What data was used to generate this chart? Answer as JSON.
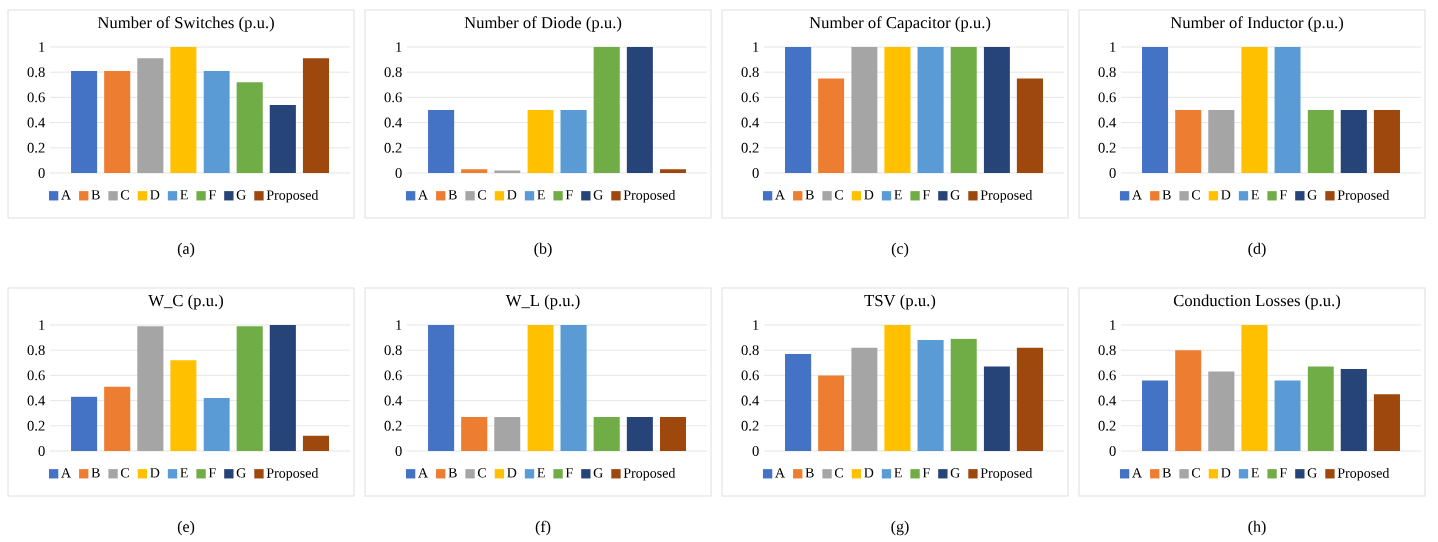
{
  "chart_data": [
    {
      "type": "bar",
      "title": "Number of Switches (p.u.)",
      "categories": [
        null
      ],
      "ylim": [
        0,
        1
      ],
      "yticks": [
        0,
        0.2,
        0.4,
        0.6,
        0.8,
        1
      ],
      "grid": "y",
      "legend": "bottom",
      "annotations": [
        "(a)"
      ],
      "series": [
        {
          "name": "A",
          "color": "#4472c4",
          "values": [
            0.81
          ]
        },
        {
          "name": "B",
          "color": "#ed7d31",
          "values": [
            0.81
          ]
        },
        {
          "name": "C",
          "color": "#a5a5a5",
          "values": [
            0.91
          ]
        },
        {
          "name": "D",
          "color": "#ffc000",
          "values": [
            1
          ]
        },
        {
          "name": "E",
          "color": "#5b9bd5",
          "values": [
            0.81
          ]
        },
        {
          "name": "F",
          "color": "#70ad47",
          "values": [
            0.72
          ]
        },
        {
          "name": "G",
          "color": "#264478",
          "values": [
            0.54
          ]
        },
        {
          "name": "Proposed",
          "color": "#9e480e",
          "values": [
            0.91
          ]
        }
      ]
    },
    {
      "type": "bar",
      "title": "Number of Diode (p.u.)",
      "categories": [
        null
      ],
      "ylim": [
        0,
        1
      ],
      "yticks": [
        0,
        0.2,
        0.4,
        0.6,
        0.8,
        1
      ],
      "grid": "y",
      "legend": "bottom",
      "annotations": [
        "(b)"
      ],
      "series": [
        {
          "name": "A",
          "color": "#4472c4",
          "values": [
            0.5
          ]
        },
        {
          "name": "B",
          "color": "#ed7d31",
          "values": [
            0.03
          ]
        },
        {
          "name": "C",
          "color": "#a5a5a5",
          "values": [
            0.02
          ]
        },
        {
          "name": "D",
          "color": "#ffc000",
          "values": [
            0.5
          ]
        },
        {
          "name": "E",
          "color": "#5b9bd5",
          "values": [
            0.5
          ]
        },
        {
          "name": "F",
          "color": "#70ad47",
          "values": [
            1
          ]
        },
        {
          "name": "G",
          "color": "#264478",
          "values": [
            1
          ]
        },
        {
          "name": "Proposed",
          "color": "#9e480e",
          "values": [
            0.03
          ]
        }
      ]
    },
    {
      "type": "bar",
      "title": "Number of Capacitor (p.u.)",
      "categories": [
        null
      ],
      "ylim": [
        0,
        1
      ],
      "yticks": [
        0,
        0.2,
        0.4,
        0.6,
        0.8,
        1
      ],
      "grid": "y",
      "legend": "bottom",
      "annotations": [
        "(c)"
      ],
      "series": [
        {
          "name": "A",
          "color": "#4472c4",
          "values": [
            1
          ]
        },
        {
          "name": "B",
          "color": "#ed7d31",
          "values": [
            0.75
          ]
        },
        {
          "name": "C",
          "color": "#a5a5a5",
          "values": [
            1
          ]
        },
        {
          "name": "D",
          "color": "#ffc000",
          "values": [
            1
          ]
        },
        {
          "name": "E",
          "color": "#5b9bd5",
          "values": [
            1
          ]
        },
        {
          "name": "F",
          "color": "#70ad47",
          "values": [
            1
          ]
        },
        {
          "name": "G",
          "color": "#264478",
          "values": [
            1
          ]
        },
        {
          "name": "Proposed",
          "color": "#9e480e",
          "values": [
            0.75
          ]
        }
      ]
    },
    {
      "type": "bar",
      "title": "Number of Inductor (p.u.)",
      "categories": [
        null
      ],
      "ylim": [
        0,
        1
      ],
      "yticks": [
        0,
        0.2,
        0.4,
        0.6,
        0.8,
        1
      ],
      "grid": "y",
      "legend": "bottom",
      "annotations": [
        "(d)"
      ],
      "series": [
        {
          "name": "A",
          "color": "#4472c4",
          "values": [
            1
          ]
        },
        {
          "name": "B",
          "color": "#ed7d31",
          "values": [
            0.5
          ]
        },
        {
          "name": "C",
          "color": "#a5a5a5",
          "values": [
            0.5
          ]
        },
        {
          "name": "D",
          "color": "#ffc000",
          "values": [
            1
          ]
        },
        {
          "name": "E",
          "color": "#5b9bd5",
          "values": [
            1
          ]
        },
        {
          "name": "F",
          "color": "#70ad47",
          "values": [
            0.5
          ]
        },
        {
          "name": "G",
          "color": "#264478",
          "values": [
            0.5
          ]
        },
        {
          "name": "Proposed",
          "color": "#9e480e",
          "values": [
            0.5
          ]
        }
      ]
    },
    {
      "type": "bar",
      "title": "W_C (p.u.)",
      "categories": [
        null
      ],
      "ylim": [
        0,
        1
      ],
      "yticks": [
        0,
        0.2,
        0.4,
        0.6,
        0.8,
        1
      ],
      "grid": "y",
      "legend": "bottom",
      "annotations": [
        "(e)"
      ],
      "series": [
        {
          "name": "A",
          "color": "#4472c4",
          "values": [
            0.43
          ]
        },
        {
          "name": "B",
          "color": "#ed7d31",
          "values": [
            0.51
          ]
        },
        {
          "name": "C",
          "color": "#a5a5a5",
          "values": [
            0.99
          ]
        },
        {
          "name": "D",
          "color": "#ffc000",
          "values": [
            0.72
          ]
        },
        {
          "name": "E",
          "color": "#5b9bd5",
          "values": [
            0.42
          ]
        },
        {
          "name": "F",
          "color": "#70ad47",
          "values": [
            0.99
          ]
        },
        {
          "name": "G",
          "color": "#264478",
          "values": [
            1
          ]
        },
        {
          "name": "Proposed",
          "color": "#9e480e",
          "values": [
            0.12
          ]
        }
      ]
    },
    {
      "type": "bar",
      "title": "W_L (p.u.)",
      "categories": [
        null
      ],
      "ylim": [
        0,
        1
      ],
      "yticks": [
        0,
        0.2,
        0.4,
        0.6,
        0.8,
        1
      ],
      "grid": "y",
      "legend": "bottom",
      "annotations": [
        "(f)"
      ],
      "series": [
        {
          "name": "A",
          "color": "#4472c4",
          "values": [
            1
          ]
        },
        {
          "name": "B",
          "color": "#ed7d31",
          "values": [
            0.27
          ]
        },
        {
          "name": "C",
          "color": "#a5a5a5",
          "values": [
            0.27
          ]
        },
        {
          "name": "D",
          "color": "#ffc000",
          "values": [
            1
          ]
        },
        {
          "name": "E",
          "color": "#5b9bd5",
          "values": [
            1
          ]
        },
        {
          "name": "F",
          "color": "#70ad47",
          "values": [
            0.27
          ]
        },
        {
          "name": "G",
          "color": "#264478",
          "values": [
            0.27
          ]
        },
        {
          "name": "Proposed",
          "color": "#9e480e",
          "values": [
            0.27
          ]
        }
      ]
    },
    {
      "type": "bar",
      "title": "TSV (p.u.)",
      "categories": [
        null
      ],
      "ylim": [
        0,
        1
      ],
      "yticks": [
        0,
        0.2,
        0.4,
        0.6,
        0.8,
        1
      ],
      "grid": "y",
      "legend": "bottom",
      "annotations": [
        "(g)"
      ],
      "series": [
        {
          "name": "A",
          "color": "#4472c4",
          "values": [
            0.77
          ]
        },
        {
          "name": "B",
          "color": "#ed7d31",
          "values": [
            0.6
          ]
        },
        {
          "name": "C",
          "color": "#a5a5a5",
          "values": [
            0.82
          ]
        },
        {
          "name": "D",
          "color": "#ffc000",
          "values": [
            1
          ]
        },
        {
          "name": "E",
          "color": "#5b9bd5",
          "values": [
            0.88
          ]
        },
        {
          "name": "F",
          "color": "#70ad47",
          "values": [
            0.89
          ]
        },
        {
          "name": "G",
          "color": "#264478",
          "values": [
            0.67
          ]
        },
        {
          "name": "Proposed",
          "color": "#9e480e",
          "values": [
            0.82
          ]
        }
      ]
    },
    {
      "type": "bar",
      "title": "Conduction Losses (p.u.)",
      "categories": [
        null
      ],
      "ylim": [
        0,
        1
      ],
      "yticks": [
        0,
        0.2,
        0.4,
        0.6,
        0.8,
        1
      ],
      "grid": "y",
      "legend": "bottom",
      "annotations": [
        "(h)"
      ],
      "series": [
        {
          "name": "A",
          "color": "#4472c4",
          "values": [
            0.56
          ]
        },
        {
          "name": "B",
          "color": "#ed7d31",
          "values": [
            0.8
          ]
        },
        {
          "name": "C",
          "color": "#a5a5a5",
          "values": [
            0.63
          ]
        },
        {
          "name": "D",
          "color": "#ffc000",
          "values": [
            1
          ]
        },
        {
          "name": "E",
          "color": "#5b9bd5",
          "values": [
            0.56
          ]
        },
        {
          "name": "F",
          "color": "#70ad47",
          "values": [
            0.67
          ]
        },
        {
          "name": "G",
          "color": "#264478",
          "values": [
            0.65
          ]
        },
        {
          "name": "Proposed",
          "color": "#9e480e",
          "values": [
            0.45
          ]
        }
      ]
    }
  ]
}
